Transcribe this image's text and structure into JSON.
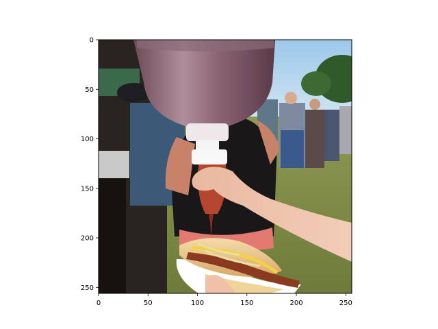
{
  "figure": {
    "x_ticks": [
      "0",
      "50",
      "100",
      "150",
      "200",
      "250"
    ],
    "y_ticks": [
      "0",
      "50",
      "100",
      "150",
      "200",
      "250"
    ],
    "image_extent": {
      "x": [
        0,
        256
      ],
      "y": [
        256,
        0
      ]
    },
    "photo_subject": "hand squeezing a large ketchup bottle over a hot dog with sauerkraut and mustard at an outdoor event"
  }
}
